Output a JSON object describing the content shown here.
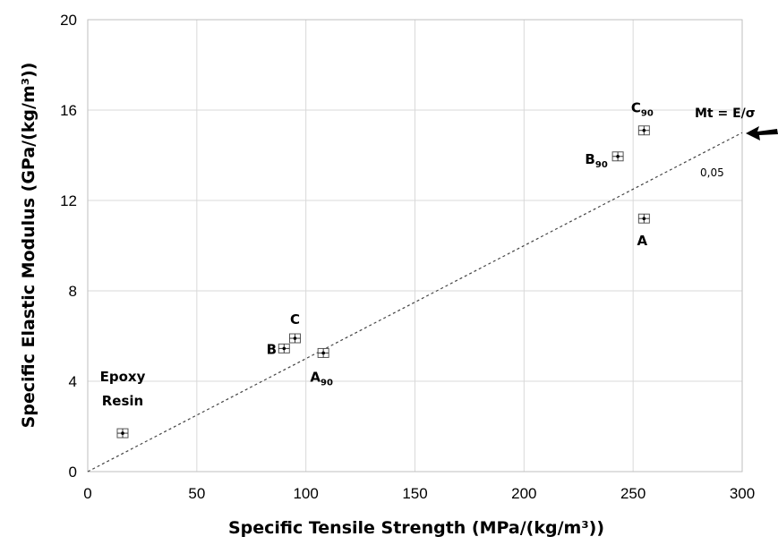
{
  "chart_data": {
    "type": "scatter",
    "xlabel": "Specific Tensile Strength (MPa/(kg/m³))",
    "ylabel": "Specific Elastic Modulus (GPa/(kg/m³))",
    "xlim": [
      0,
      300
    ],
    "ylim": [
      0,
      20
    ],
    "xticks": [
      0,
      50,
      100,
      150,
      200,
      250,
      300
    ],
    "yticks": [
      0,
      4,
      8,
      12,
      16,
      20
    ],
    "grid": true,
    "points": [
      {
        "label": "Epoxy Resin",
        "label_lines": [
          "Epoxy",
          "Resin"
        ],
        "x": 16,
        "y": 1.7
      },
      {
        "label": "B",
        "main": "B",
        "sub": "",
        "x": 90,
        "y": 5.45
      },
      {
        "label": "C",
        "main": "C",
        "sub": "",
        "x": 95,
        "y": 5.9
      },
      {
        "label": "A90",
        "main": "A",
        "sub": "90",
        "x": 108,
        "y": 5.25
      },
      {
        "label": "B90",
        "main": "B",
        "sub": "90",
        "x": 243,
        "y": 13.95
      },
      {
        "label": "C90",
        "main": "C",
        "sub": "90",
        "x": 255,
        "y": 15.1
      },
      {
        "label": "A",
        "main": "A",
        "sub": "",
        "x": 255,
        "y": 11.2
      }
    ],
    "reference_line": {
      "slope": 0.05,
      "x": [
        0,
        300
      ],
      "y": [
        0,
        15
      ],
      "label": "Mt = E/σ",
      "slope_label": "0,05"
    }
  }
}
